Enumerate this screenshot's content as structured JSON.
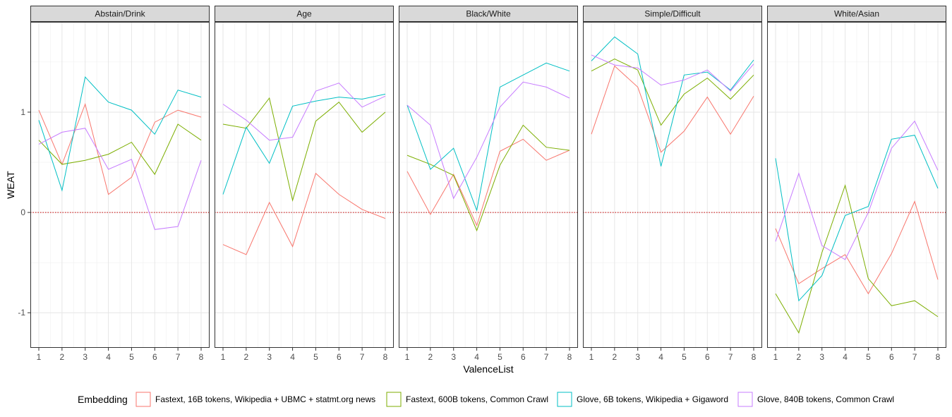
{
  "chart_data": {
    "type": "line",
    "facet_labels": [
      "Abstain/Drink",
      "Age",
      "Black/White",
      "Simple/Difficult",
      "White/Asian"
    ],
    "x": [
      1,
      2,
      3,
      4,
      5,
      6,
      7,
      8
    ],
    "xlabel": "ValenceList",
    "ylabel": "WEAT",
    "ylim": [
      -1.35,
      1.9
    ],
    "y_ticks": [
      -1,
      0,
      1
    ],
    "reference_line": 0,
    "grid": true,
    "legend": {
      "title": "Embedding",
      "position": "bottom",
      "entries": [
        "Fastext, 16B tokens, Wikipedia + UBMC + statmt.org news",
        "Fastext, 600B tokens, Common Crawl",
        "Glove, 6B tokens, Wikipedia + Gigaword",
        "Glove, 840B tokens, Common Crawl"
      ]
    },
    "colors": [
      "#F8766D",
      "#7CAE00",
      "#00BFC4",
      "#C77CFF"
    ],
    "reference_color": "#cc0000",
    "facets": [
      {
        "series": [
          [
            1.02,
            0.48,
            1.08,
            0.18,
            0.35,
            0.9,
            1.02,
            0.95
          ],
          [
            0.72,
            0.48,
            0.52,
            0.58,
            0.7,
            0.38,
            0.88,
            0.72
          ],
          [
            0.92,
            0.22,
            1.35,
            1.1,
            1.02,
            0.78,
            1.22,
            1.15
          ],
          [
            0.68,
            0.8,
            0.84,
            0.43,
            0.53,
            -0.17,
            -0.14,
            0.52
          ]
        ]
      },
      {
        "series": [
          [
            -0.32,
            -0.42,
            0.1,
            -0.34,
            0.39,
            0.18,
            0.03,
            -0.06
          ],
          [
            0.88,
            0.84,
            1.14,
            0.12,
            0.91,
            1.1,
            0.8,
            1.0
          ],
          [
            0.18,
            0.85,
            0.49,
            1.06,
            1.11,
            1.15,
            1.13,
            1.18
          ],
          [
            1.08,
            0.92,
            0.72,
            0.75,
            1.21,
            1.29,
            1.05,
            1.16
          ]
        ]
      },
      {
        "series": [
          [
            0.41,
            -0.02,
            0.38,
            -0.13,
            0.61,
            0.73,
            0.52,
            0.62
          ],
          [
            0.57,
            0.48,
            0.37,
            -0.18,
            0.47,
            0.87,
            0.65,
            0.62
          ],
          [
            1.07,
            0.43,
            0.64,
            0.02,
            1.25,
            1.37,
            1.49,
            1.41
          ],
          [
            1.07,
            0.87,
            0.14,
            0.55,
            1.05,
            1.3,
            1.25,
            1.14
          ]
        ]
      },
      {
        "series": [
          [
            0.78,
            1.46,
            1.25,
            0.6,
            0.81,
            1.15,
            0.78,
            1.16
          ],
          [
            1.41,
            1.53,
            1.42,
            0.87,
            1.18,
            1.34,
            1.13,
            1.37
          ],
          [
            1.51,
            1.75,
            1.58,
            0.46,
            1.37,
            1.4,
            1.22,
            1.52
          ],
          [
            1.57,
            1.47,
            1.44,
            1.27,
            1.32,
            1.42,
            1.21,
            1.48
          ]
        ]
      },
      {
        "series": [
          [
            -0.16,
            -0.71,
            -0.56,
            -0.42,
            -0.81,
            -0.41,
            0.11,
            -0.67
          ],
          [
            -0.81,
            -1.2,
            -0.4,
            0.27,
            -0.66,
            -0.93,
            -0.88,
            -1.04
          ],
          [
            0.54,
            -0.88,
            -0.63,
            -0.03,
            0.06,
            0.73,
            0.77,
            0.24
          ],
          [
            -0.29,
            0.39,
            -0.33,
            -0.47,
            0.0,
            0.64,
            0.91,
            0.42
          ]
        ]
      }
    ]
  }
}
